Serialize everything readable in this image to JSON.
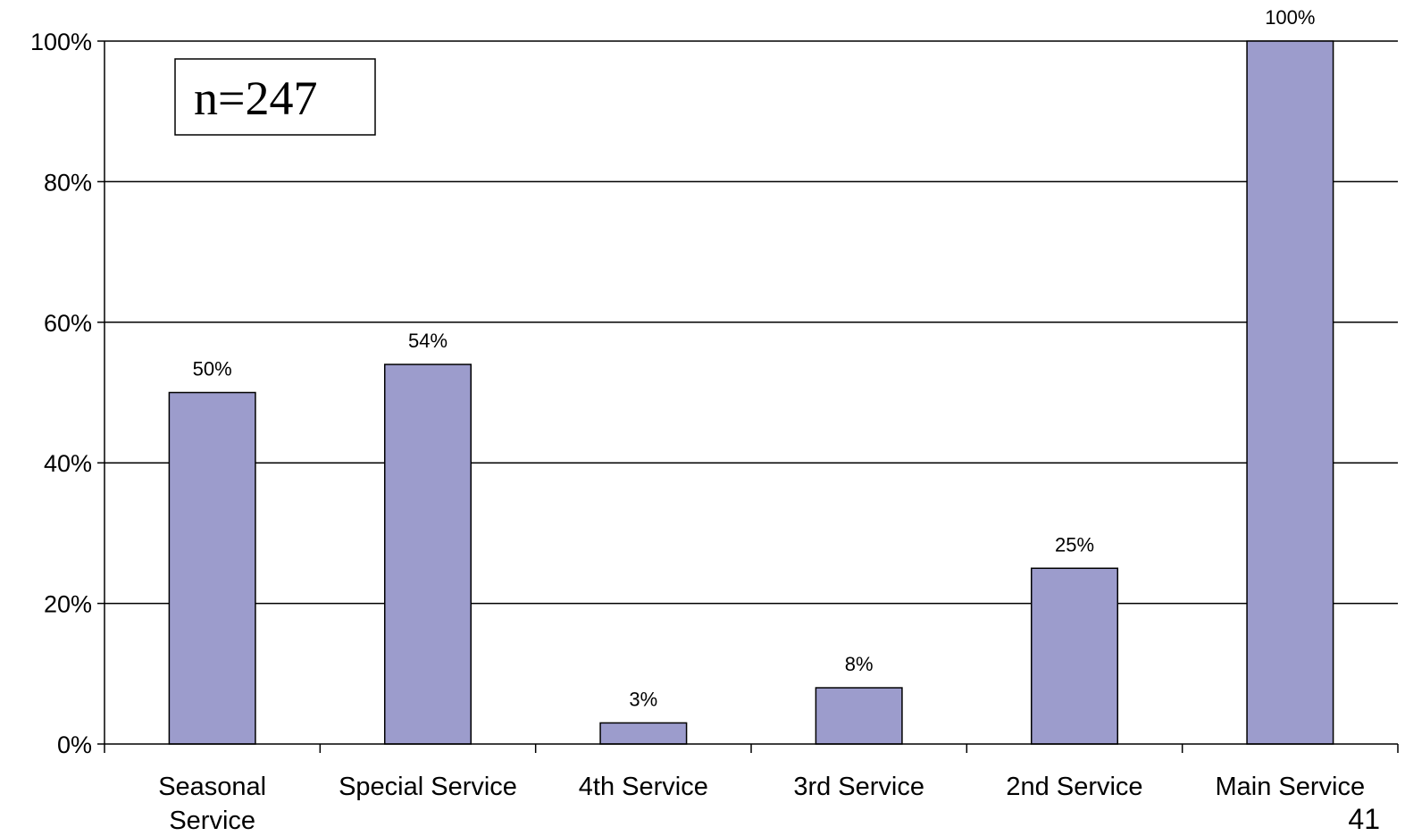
{
  "chart_data": {
    "type": "bar",
    "categories": [
      "Seasonal Service",
      "Special Service",
      "4th Service",
      "3rd Service",
      "2nd Service",
      "Main Service"
    ],
    "values": [
      50,
      54,
      3,
      8,
      25,
      100
    ],
    "data_labels": [
      "50%",
      "54%",
      "3%",
      "8%",
      "25%",
      "100%"
    ],
    "y_ticks": [
      "0%",
      "20%",
      "40%",
      "60%",
      "80%",
      "100%"
    ],
    "ylim": [
      0,
      100
    ],
    "grid": true,
    "annotation": "n=247",
    "bar_color": "#9c9ccc",
    "legend": "none"
  },
  "page_number": "41"
}
